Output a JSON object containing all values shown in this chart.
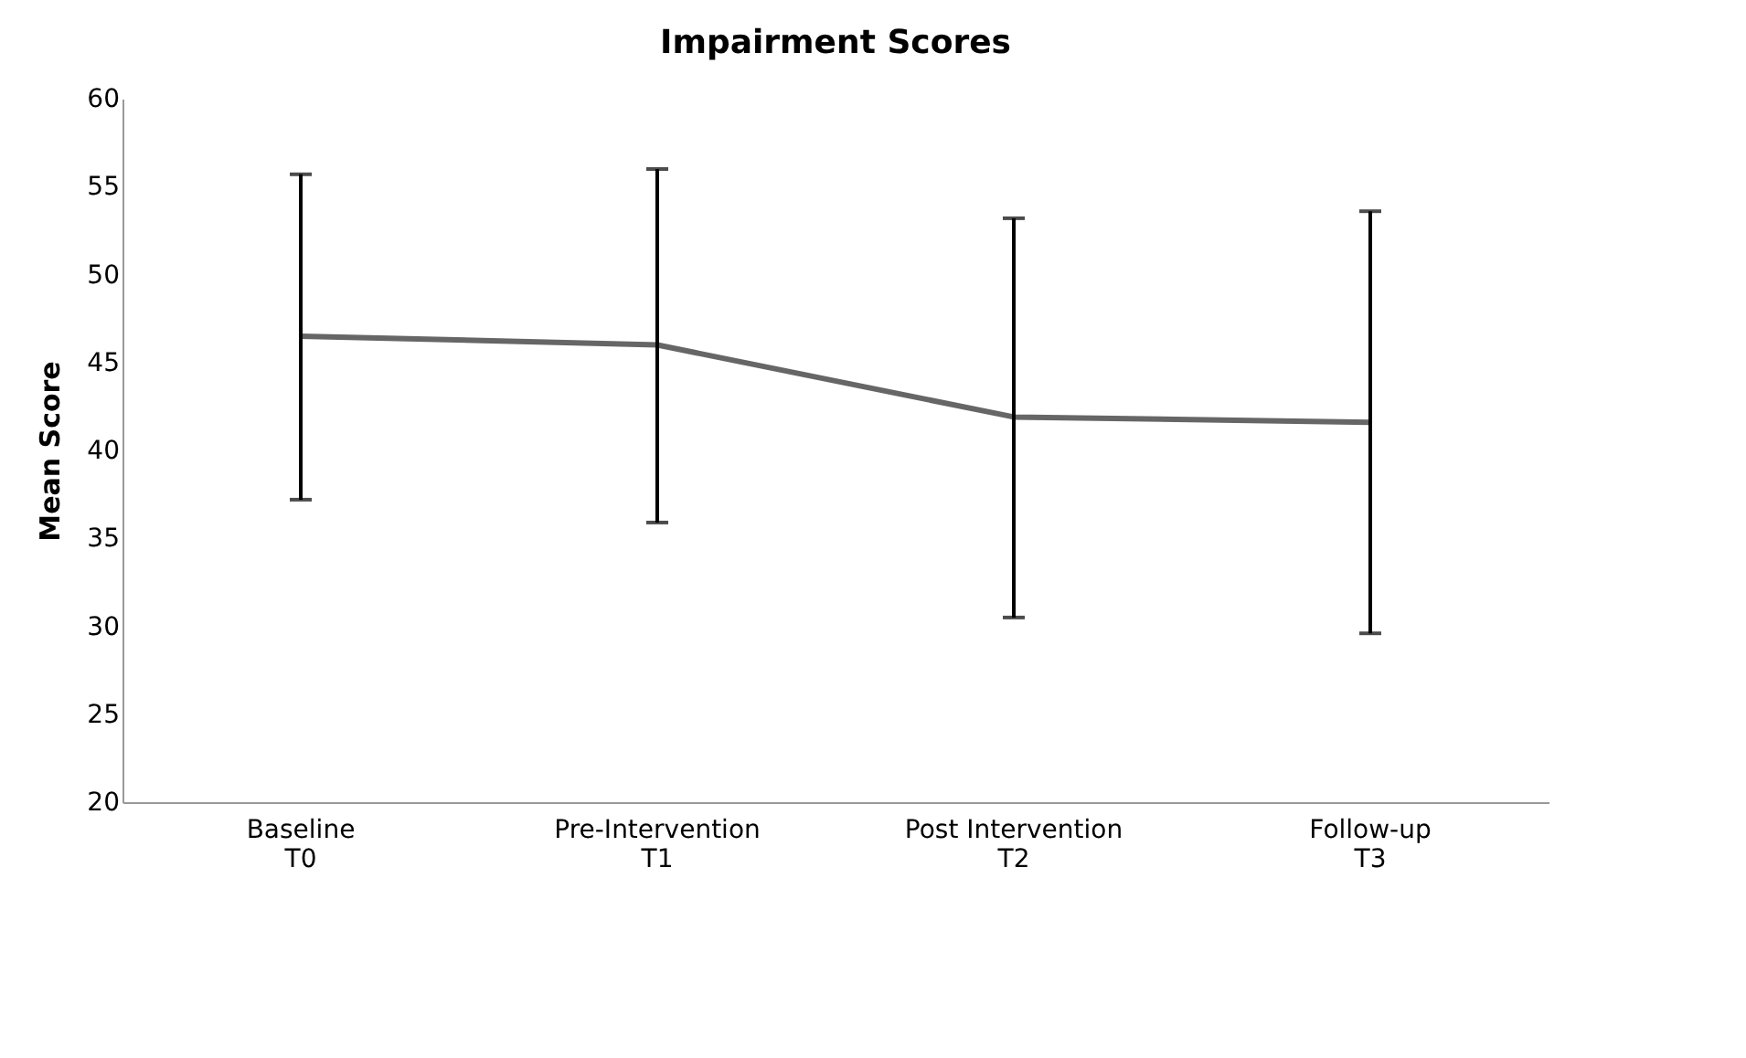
{
  "chart_data": {
    "type": "line",
    "title": "Impairment Scores",
    "ylabel": "Mean Score",
    "categories": [
      "Baseline\nT0",
      "Pre-Intervention\nT1",
      "Post Intervention\nT2",
      "Follow-up\nT3"
    ],
    "series": [
      {
        "color": "#666666",
        "values": [
          46.5,
          46.0,
          41.9,
          41.6
        ],
        "errors": [
          [
            37.2,
            55.7
          ],
          [
            35.9,
            56.0
          ],
          [
            30.5,
            53.2
          ],
          [
            29.6,
            53.6
          ]
        ]
      }
    ],
    "ylim": [
      20,
      60
    ],
    "yticks": [
      20,
      25,
      30,
      35,
      40,
      45,
      50,
      55,
      60
    ],
    "grid": false,
    "marker": "none",
    "line_style": "solid"
  }
}
